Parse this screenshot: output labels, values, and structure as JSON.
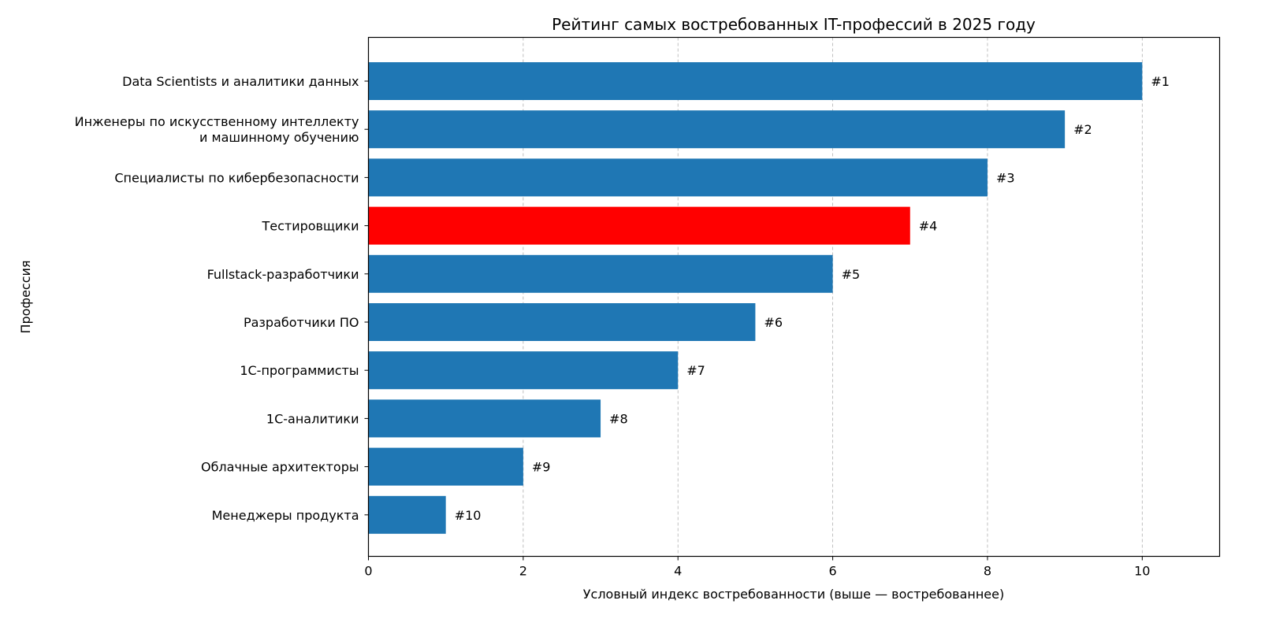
{
  "chart_data": {
    "type": "bar",
    "orientation": "horizontal",
    "title": "Рейтинг самых востребованных IT-профессий в 2025 году",
    "xlabel": "Условный индекс востребованности (выше — востребованнее)",
    "ylabel": "Профессия",
    "xlim": [
      0,
      11
    ],
    "xticks": [
      0,
      2,
      4,
      6,
      8,
      10
    ],
    "grid": "x-dashed",
    "categories": [
      "Data Scientists и аналитики данных",
      "Инженеры по искусственному интеллекту\nи машинному обучению",
      "Специалисты по кибербезопасности",
      "Тестировщики",
      "Fullstack-разработчики",
      "Разработчики ПО",
      "1С-программисты",
      "1С-аналитики",
      "Облачные архитекторы",
      "Менеджеры продукта"
    ],
    "values": [
      10,
      9,
      8,
      7,
      6,
      5,
      4,
      3,
      2,
      1
    ],
    "data_labels": [
      "#1",
      "#2",
      "#3",
      "#4",
      "#5",
      "#6",
      "#7",
      "#8",
      "#9",
      "#10"
    ],
    "colors": {
      "default": "#1f77b4",
      "highlight": "#ff0000",
      "grid": "#b0b0b0"
    },
    "highlighted_category": "Тестировщики"
  }
}
